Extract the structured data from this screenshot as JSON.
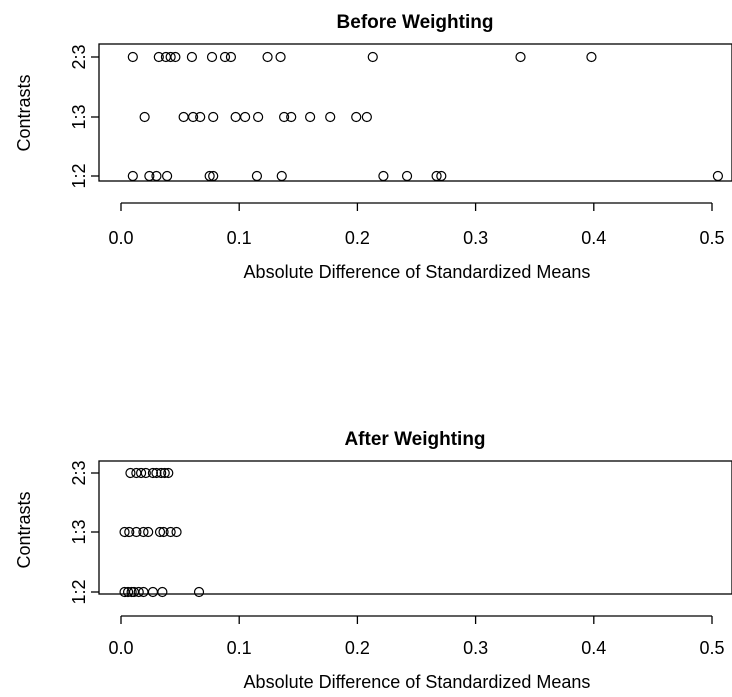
{
  "chart_data": [
    {
      "type": "scatter",
      "title": "Before Weighting",
      "xlabel": "Absolute Difference of Standardized Means",
      "ylabel": "Contrasts",
      "categories": [
        "1:2",
        "1:3",
        "2:3"
      ],
      "xlim": [
        0,
        0.5
      ],
      "xticks": [
        "0.0",
        "0.1",
        "0.2",
        "0.3",
        "0.4",
        "0.5"
      ],
      "grid": false,
      "legend": "none",
      "series": [
        {
          "category": "2:3",
          "values": [
            0.01,
            0.032,
            0.038,
            0.042,
            0.046,
            0.06,
            0.077,
            0.088,
            0.093,
            0.124,
            0.135,
            0.213,
            0.338,
            0.398
          ]
        },
        {
          "category": "1:3",
          "values": [
            0.02,
            0.053,
            0.061,
            0.067,
            0.078,
            0.097,
            0.105,
            0.116,
            0.138,
            0.144,
            0.16,
            0.177,
            0.199,
            0.208
          ]
        },
        {
          "category": "1:2",
          "values": [
            0.01,
            0.024,
            0.03,
            0.039,
            0.075,
            0.078,
            0.115,
            0.136,
            0.222,
            0.242,
            0.267,
            0.271,
            0.505
          ]
        }
      ]
    },
    {
      "type": "scatter",
      "title": "After Weighting",
      "xlabel": "Absolute Difference of Standardized Means",
      "ylabel": "Contrasts",
      "categories": [
        "1:2",
        "1:3",
        "2:3"
      ],
      "xlim": [
        0,
        0.5
      ],
      "xticks": [
        "0.0",
        "0.1",
        "0.2",
        "0.3",
        "0.4",
        "0.5"
      ],
      "grid": false,
      "legend": "none",
      "series": [
        {
          "category": "2:3",
          "values": [
            0.008,
            0.013,
            0.017,
            0.021,
            0.027,
            0.03,
            0.034,
            0.037,
            0.04
          ]
        },
        {
          "category": "1:3",
          "values": [
            0.003,
            0.007,
            0.013,
            0.019,
            0.023,
            0.033,
            0.036,
            0.042,
            0.047
          ]
        },
        {
          "category": "1:2",
          "values": [
            0.003,
            0.006,
            0.009,
            0.011,
            0.015,
            0.019,
            0.027,
            0.035,
            0.066
          ]
        }
      ]
    }
  ]
}
